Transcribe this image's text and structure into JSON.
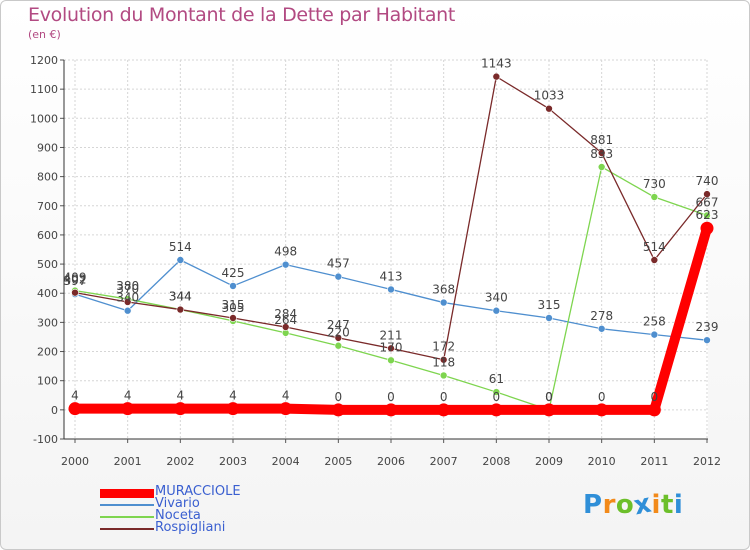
{
  "chart_data": {
    "type": "line",
    "title": "Evolution du Montant de la Dette par Habitant",
    "ylabel": "(en €)",
    "categories": [
      "2000",
      "2001",
      "2002",
      "2003",
      "2004",
      "2005",
      "2006",
      "2007",
      "2008",
      "2009",
      "2010",
      "2011",
      "2012"
    ],
    "ylim": [
      -100,
      1200
    ],
    "yticks": [
      "-100",
      "0",
      "100",
      "200",
      "300",
      "400",
      "500",
      "600",
      "700",
      "800",
      "900",
      "1000",
      "1100",
      "1200"
    ],
    "grid": true,
    "legend_position": "bottom-left",
    "series": [
      {
        "name": "MURACCIOLE",
        "color": "#ff0000",
        "values": [
          4,
          4,
          4,
          4,
          4,
          0,
          0,
          0,
          0,
          0,
          0,
          0,
          623
        ],
        "labels": [
          "4",
          "4",
          "4",
          "4",
          "4",
          "0",
          "0",
          "0",
          "0",
          "0",
          "0",
          "0",
          "623"
        ]
      },
      {
        "name": "Vivario",
        "color": "#4f8fcf",
        "values": [
          397,
          340,
          514,
          425,
          498,
          457,
          413,
          368,
          340,
          315,
          278,
          258,
          239
        ],
        "labels": [
          "397",
          "340",
          "514",
          "425",
          "498",
          "457",
          "413",
          "368",
          "340",
          "315",
          "278",
          "258",
          "239"
        ]
      },
      {
        "name": "Noceta",
        "color": "#7ed54f",
        "values": [
          409,
          380,
          344,
          305,
          264,
          220,
          170,
          118,
          61,
          0,
          833,
          730,
          667
        ],
        "labels": [
          "409",
          "380",
          "344",
          "305",
          "264",
          "220",
          "170",
          "118",
          "61",
          "0",
          "833",
          "730",
          "667"
        ]
      },
      {
        "name": "Rospigliani",
        "color": "#7a2a2a",
        "values": [
          402,
          370,
          344,
          315,
          284,
          247,
          211,
          172,
          1143,
          1033,
          881,
          514,
          740
        ],
        "labels": [
          "402",
          "370",
          "344",
          "315",
          "284",
          "247",
          "211",
          "172",
          "1143",
          "1033",
          "881",
          "514",
          "740"
        ]
      }
    ]
  },
  "logo": {
    "letters": [
      "P",
      "r",
      "o",
      "x",
      "i",
      "t",
      "i"
    ],
    "colors": [
      "#2f8fd8",
      "#f28a1a",
      "#6cbf2a",
      "#2f8fd8",
      "#f28a1a",
      "#6cbf2a",
      "#2f8fd8"
    ]
  }
}
